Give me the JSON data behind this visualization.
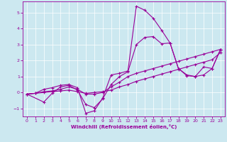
{
  "xlabel": "Windchill (Refroidissement éolien,°C)",
  "bg_color": "#cce8f0",
  "line_color": "#990099",
  "marker": "+",
  "markersize": 3.5,
  "linewidth": 0.8,
  "xlim": [
    -0.5,
    23.5
  ],
  "ylim": [
    -1.5,
    5.7
  ],
  "xticks": [
    0,
    1,
    2,
    3,
    4,
    5,
    6,
    7,
    8,
    9,
    10,
    11,
    12,
    13,
    14,
    15,
    16,
    17,
    18,
    19,
    20,
    21,
    22,
    23
  ],
  "yticks": [
    -1,
    0,
    1,
    2,
    3,
    4,
    5
  ],
  "lines": [
    {
      "x": [
        0,
        1,
        2,
        3,
        4,
        5,
        6,
        7,
        8,
        9,
        10,
        11,
        12,
        13,
        14,
        15,
        16,
        17,
        18,
        19,
        20,
        21,
        22,
        23
      ],
      "y": [
        -0.1,
        -0.05,
        0.2,
        0.3,
        0.45,
        0.5,
        0.3,
        -1.3,
        -1.15,
        -0.35,
        1.1,
        1.2,
        1.35,
        5.4,
        5.15,
        4.65,
        3.9,
        3.1,
        1.5,
        1.05,
        1.0,
        1.6,
        1.5,
        2.7
      ]
    },
    {
      "x": [
        0,
        2,
        3,
        4,
        5,
        6,
        7,
        8,
        9,
        10,
        11,
        12,
        13,
        14,
        15,
        16,
        17,
        18,
        19,
        20,
        21,
        22,
        23
      ],
      "y": [
        -0.1,
        -0.6,
        -0.05,
        0.35,
        0.45,
        0.15,
        -0.75,
        -0.95,
        -0.4,
        0.5,
        1.0,
        1.3,
        3.0,
        3.45,
        3.5,
        3.05,
        3.1,
        1.5,
        1.1,
        1.0,
        1.1,
        1.5,
        2.7
      ]
    },
    {
      "x": [
        0,
        1,
        2,
        3,
        4,
        5,
        6,
        7,
        8,
        9,
        10,
        11,
        12,
        13,
        14,
        15,
        16,
        17,
        18,
        19,
        20,
        21,
        22,
        23
      ],
      "y": [
        -0.1,
        -0.05,
        0.05,
        0.1,
        0.2,
        0.35,
        0.2,
        -0.1,
        -0.1,
        0.0,
        0.35,
        0.65,
        1.0,
        1.2,
        1.35,
        1.5,
        1.65,
        1.8,
        1.95,
        2.1,
        2.25,
        2.4,
        2.55,
        2.7
      ]
    },
    {
      "x": [
        0,
        1,
        2,
        3,
        4,
        5,
        6,
        7,
        8,
        9,
        10,
        11,
        12,
        13,
        14,
        15,
        16,
        17,
        18,
        19,
        20,
        21,
        22,
        23
      ],
      "y": [
        -0.1,
        -0.05,
        0.0,
        0.05,
        0.1,
        0.15,
        0.05,
        -0.05,
        0.0,
        0.05,
        0.15,
        0.35,
        0.5,
        0.7,
        0.85,
        1.0,
        1.15,
        1.3,
        1.45,
        1.6,
        1.75,
        1.9,
        2.05,
        2.5
      ]
    }
  ]
}
